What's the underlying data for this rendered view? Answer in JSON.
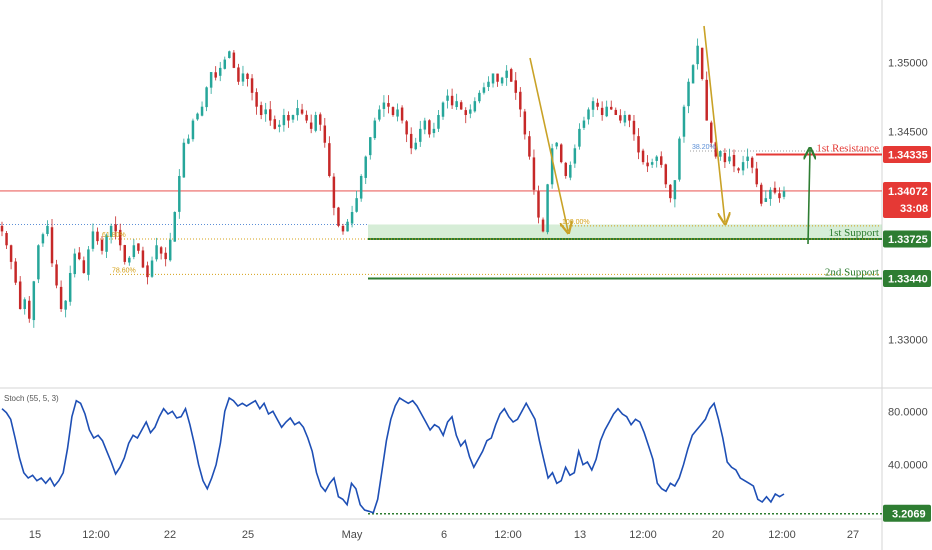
{
  "chart_data": [
    {
      "type": "candlestick",
      "x_ticks": [
        "15",
        "12:00",
        "22",
        "25",
        "May",
        "6",
        "12:00",
        "13",
        "12:00",
        "20",
        "12:00",
        "27"
      ],
      "y_ticks": [
        "1.35000",
        "1.34500",
        "1.33000"
      ],
      "ylim": [
        1.3265,
        1.3545
      ],
      "grid": false,
      "current_price": {
        "value": "1.34072",
        "countdown": "33:08",
        "color": "#e53935"
      },
      "levels": [
        {
          "name": "1st Resistance",
          "value": "1.34335",
          "y": 1.34335,
          "color": "#e53935"
        },
        {
          "name": "1st Support",
          "value": "1.33725",
          "y": 1.33725,
          "color": "#2e7d32"
        },
        {
          "name": "2nd Support",
          "value": "1.33440",
          "y": 1.3344,
          "color": "#2e7d32"
        }
      ],
      "fib_labels": [
        {
          "text": "61.80%",
          "y": 1.33725
        },
        {
          "text": "78.60%",
          "y": 1.3347
        },
        {
          "text": "38.20%",
          "y": 1.3436
        },
        {
          "text": "100.00%",
          "y": 1.3382
        }
      ],
      "support_zone": [
        1.33725,
        1.3383
      ],
      "prices": [
        1.3378,
        1.3368,
        1.3356,
        1.3341,
        1.3322,
        1.3329,
        1.3315,
        1.3342,
        1.3368,
        1.3376,
        1.3382,
        1.3355,
        1.3339,
        1.3322,
        1.3328,
        1.3348,
        1.3362,
        1.3358,
        1.3348,
        1.3365,
        1.3378,
        1.3371,
        1.3364,
        1.3375,
        1.3382,
        1.3378,
        1.3368,
        1.3356,
        1.3359,
        1.3368,
        1.3364,
        1.3352,
        1.3345,
        1.3357,
        1.3368,
        1.3362,
        1.3358,
        1.3372,
        1.3392,
        1.3418,
        1.3442,
        1.3445,
        1.3458,
        1.3463,
        1.3468,
        1.3482,
        1.3493,
        1.3489,
        1.3496,
        1.3502,
        1.3508,
        1.3496,
        1.3486,
        1.3492,
        1.3488,
        1.3478,
        1.3468,
        1.3462,
        1.3466,
        1.3458,
        1.3452,
        1.3455,
        1.3462,
        1.3458,
        1.3462,
        1.3467,
        1.3463,
        1.3458,
        1.3452,
        1.3462,
        1.3455,
        1.3442,
        1.3418,
        1.3395,
        1.3382,
        1.3378,
        1.3385,
        1.3392,
        1.3402,
        1.3418,
        1.3432,
        1.3446,
        1.3458,
        1.3466,
        1.3471,
        1.3468,
        1.3462,
        1.3466,
        1.3458,
        1.3448,
        1.3438,
        1.3442,
        1.3452,
        1.3458,
        1.3448,
        1.3452,
        1.3462,
        1.3471,
        1.3476,
        1.3469,
        1.3472,
        1.3466,
        1.3462,
        1.3466,
        1.3472,
        1.3478,
        1.3482,
        1.3486,
        1.3492,
        1.3486,
        1.3489,
        1.3494,
        1.3486,
        1.3478,
        1.3466,
        1.3448,
        1.3432,
        1.3408,
        1.3388,
        1.3378,
        1.3412,
        1.3438,
        1.3442,
        1.3428,
        1.3418,
        1.3426,
        1.3438,
        1.3452,
        1.3458,
        1.3466,
        1.3472,
        1.3468,
        1.3462,
        1.3468,
        1.3466,
        1.3462,
        1.3458,
        1.3462,
        1.3458,
        1.3448,
        1.3435,
        1.3428,
        1.3425,
        1.3428,
        1.3432,
        1.3426,
        1.3412,
        1.3402,
        1.3415,
        1.3445,
        1.3468,
        1.3486,
        1.3498,
        1.3512,
        1.3488,
        1.3458,
        1.3442,
        1.3432,
        1.3436,
        1.3428,
        1.3432,
        1.3425,
        1.3422,
        1.3428,
        1.3432,
        1.3424,
        1.3412,
        1.3398,
        1.3402,
        1.3408,
        1.3406,
        1.3402,
        1.3407
      ],
      "stoch": {
        "title": "Stoch (55, 5, 3)",
        "ylim": [
          0,
          96
        ],
        "y_ticks": [
          "80.0000",
          "40.0000"
        ],
        "current": "3.2069",
        "color": "#1e4fb5",
        "values": [
          82,
          79,
          74,
          60,
          45,
          34,
          30,
          32,
          28,
          30,
          26,
          30,
          24,
          28,
          34,
          52,
          76,
          88,
          86,
          78,
          66,
          60,
          62,
          58,
          50,
          42,
          33,
          38,
          45,
          56,
          62,
          60,
          66,
          72,
          64,
          68,
          76,
          82,
          78,
          80,
          75,
          76,
          82,
          70,
          56,
          40,
          28,
          22,
          30,
          40,
          56,
          80,
          90,
          88,
          84,
          86,
          84,
          86,
          88,
          82,
          86,
          78,
          80,
          74,
          68,
          72,
          75,
          70,
          72,
          68,
          60,
          50,
          34,
          24,
          20,
          26,
          30,
          16,
          14,
          10,
          26,
          22,
          10,
          6,
          5,
          4,
          14,
          36,
          58,
          74,
          84,
          90,
          88,
          86,
          88,
          84,
          78,
          72,
          66,
          70,
          68,
          62,
          72,
          76,
          62,
          54,
          58,
          46,
          38,
          44,
          50,
          58,
          60,
          70,
          78,
          82,
          76,
          72,
          74,
          80,
          86,
          80,
          74,
          58,
          44,
          30,
          34,
          26,
          28,
          38,
          32,
          34,
          50,
          40,
          42,
          36,
          44,
          58,
          66,
          72,
          78,
          82,
          78,
          76,
          70,
          74,
          72,
          64,
          54,
          44,
          26,
          22,
          20,
          26,
          24,
          30,
          40,
          52,
          62,
          66,
          70,
          74,
          82,
          86,
          74,
          60,
          42,
          38,
          36,
          30,
          28,
          26,
          24,
          14,
          12,
          16,
          12,
          18,
          16,
          18
        ]
      }
    }
  ]
}
